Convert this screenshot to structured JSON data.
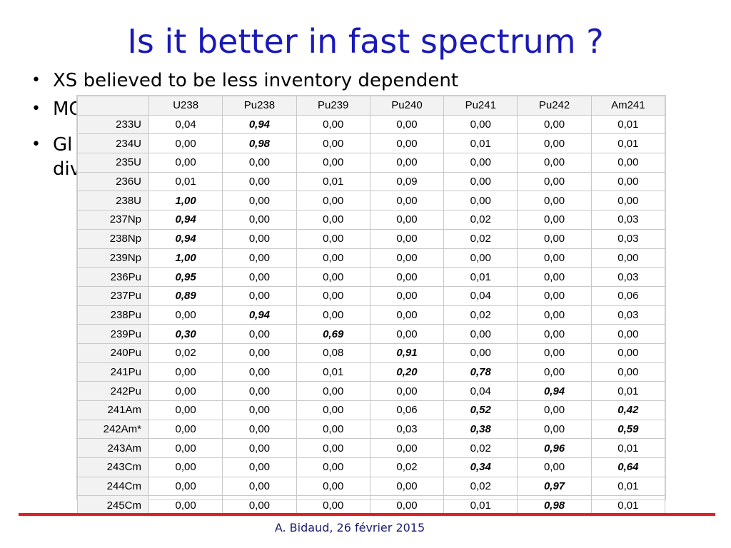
{
  "slide": {
    "title": "Is it better in fast spectrum ?",
    "bullets": [
      "XS believed to be less inventory dependent",
      "MC",
      "Gl",
      "div"
    ],
    "footer": "A.  Bidaud, 26 février 2015",
    "colors": {
      "title": "#1a1ab8",
      "footer_line": "#e02020"
    }
  },
  "table": {
    "columns": [
      "",
      "U238",
      "Pu238",
      "Pu239",
      "Pu240",
      "Pu241",
      "Pu242",
      "Am241"
    ],
    "rows": [
      {
        "label": "233U",
        "values": [
          "0,04",
          "0,94",
          "0,00",
          "0,00",
          "0,00",
          "0,00",
          "0,01"
        ],
        "bold": [
          1
        ]
      },
      {
        "label": "234U",
        "values": [
          "0,00",
          "0,98",
          "0,00",
          "0,00",
          "0,01",
          "0,00",
          "0,01"
        ],
        "bold": [
          1
        ]
      },
      {
        "label": "235U",
        "values": [
          "0,00",
          "0,00",
          "0,00",
          "0,00",
          "0,00",
          "0,00",
          "0,00"
        ],
        "bold": []
      },
      {
        "label": "236U",
        "values": [
          "0,01",
          "0,00",
          "0,01",
          "0,09",
          "0,00",
          "0,00",
          "0,00"
        ],
        "bold": []
      },
      {
        "label": "238U",
        "values": [
          "1,00",
          "0,00",
          "0,00",
          "0,00",
          "0,00",
          "0,00",
          "0,00"
        ],
        "bold": [
          0
        ]
      },
      {
        "label": "237Np",
        "values": [
          "0,94",
          "0,00",
          "0,00",
          "0,00",
          "0,02",
          "0,00",
          "0,03"
        ],
        "bold": [
          0
        ]
      },
      {
        "label": "238Np",
        "values": [
          "0,94",
          "0,00",
          "0,00",
          "0,00",
          "0,02",
          "0,00",
          "0,03"
        ],
        "bold": [
          0
        ]
      },
      {
        "label": "239Np",
        "values": [
          "1,00",
          "0,00",
          "0,00",
          "0,00",
          "0,00",
          "0,00",
          "0,00"
        ],
        "bold": [
          0
        ]
      },
      {
        "label": "236Pu",
        "values": [
          "0,95",
          "0,00",
          "0,00",
          "0,00",
          "0,01",
          "0,00",
          "0,03"
        ],
        "bold": [
          0
        ]
      },
      {
        "label": "237Pu",
        "values": [
          "0,89",
          "0,00",
          "0,00",
          "0,00",
          "0,04",
          "0,00",
          "0,06"
        ],
        "bold": [
          0
        ]
      },
      {
        "label": "238Pu",
        "values": [
          "0,00",
          "0,94",
          "0,00",
          "0,00",
          "0,02",
          "0,00",
          "0,03"
        ],
        "bold": [
          1
        ]
      },
      {
        "label": "239Pu",
        "values": [
          "0,30",
          "0,00",
          "0,69",
          "0,00",
          "0,00",
          "0,00",
          "0,00"
        ],
        "bold": [
          0,
          2
        ]
      },
      {
        "label": "240Pu",
        "values": [
          "0,02",
          "0,00",
          "0,08",
          "0,91",
          "0,00",
          "0,00",
          "0,00"
        ],
        "bold": [
          3
        ]
      },
      {
        "label": "241Pu",
        "values": [
          "0,00",
          "0,00",
          "0,01",
          "0,20",
          "0,78",
          "0,00",
          "0,00"
        ],
        "bold": [
          3,
          4
        ]
      },
      {
        "label": "242Pu",
        "values": [
          "0,00",
          "0,00",
          "0,00",
          "0,00",
          "0,04",
          "0,94",
          "0,01"
        ],
        "bold": [
          5
        ]
      },
      {
        "label": "241Am",
        "values": [
          "0,00",
          "0,00",
          "0,00",
          "0,06",
          "0,52",
          "0,00",
          "0,42"
        ],
        "bold": [
          4,
          6
        ]
      },
      {
        "label": "242Am*",
        "values": [
          "0,00",
          "0,00",
          "0,00",
          "0,03",
          "0,38",
          "0,00",
          "0,59"
        ],
        "bold": [
          4,
          6
        ]
      },
      {
        "label": "243Am",
        "values": [
          "0,00",
          "0,00",
          "0,00",
          "0,00",
          "0,02",
          "0,96",
          "0,01"
        ],
        "bold": [
          5
        ]
      },
      {
        "label": "243Cm",
        "values": [
          "0,00",
          "0,00",
          "0,00",
          "0,02",
          "0,34",
          "0,00",
          "0,64"
        ],
        "bold": [
          4,
          6
        ]
      },
      {
        "label": "244Cm",
        "values": [
          "0,00",
          "0,00",
          "0,00",
          "0,00",
          "0,02",
          "0,97",
          "0,01"
        ],
        "bold": [
          5
        ]
      },
      {
        "label": "245Cm",
        "values": [
          "0,00",
          "0,00",
          "0,00",
          "0,00",
          "0,01",
          "0,98",
          "0,01"
        ],
        "bold": [
          5
        ]
      }
    ]
  }
}
